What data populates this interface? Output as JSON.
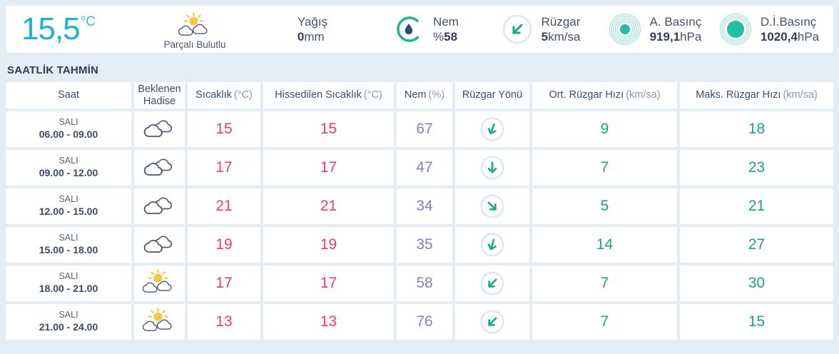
{
  "colors": {
    "background": "#e4ecf4",
    "accent_cyan": "#1ab3db",
    "temp_pink": "#f43b5f",
    "humidity_purple": "#8f7bbd",
    "wind_teal": "#15a68b",
    "icon_teal": "#1db992",
    "navy_text": "#3e4c66"
  },
  "topbar": {
    "temperature": {
      "value": "15,5",
      "unit": "°C"
    },
    "condition": {
      "label": "Parçalı Bulutlu",
      "icon": "sun-clouds"
    },
    "metrics": [
      {
        "id": "precipitation",
        "label": "Yağış",
        "value": "0",
        "unit": "mm"
      },
      {
        "id": "humidity",
        "label": "Nem",
        "prefix": "%",
        "value": "58",
        "icon": "humidity-gauge"
      },
      {
        "id": "wind",
        "label": "Rüzgar",
        "value": "5",
        "unit": "km/sa",
        "icon": "wind-arrow-lg",
        "arrow_rotation_deg": 45
      },
      {
        "id": "pressure",
        "label": "A. Basınç",
        "value": "919,1",
        "unit": "hPa",
        "icon": "pressure-small"
      },
      {
        "id": "sea-pressure",
        "label": "D.İ.Basınç",
        "value": "1020,4",
        "unit": "hPa",
        "icon": "pressure-large"
      }
    ]
  },
  "section_title": "SAATLİK TAHMİN",
  "table": {
    "headers": [
      {
        "text": "Saat"
      },
      {
        "text": "Beklenen Hadise"
      },
      {
        "text": "Sıcaklık",
        "unit": "(°C)"
      },
      {
        "text": "Hissedilen Sıcaklık",
        "unit": "(°C)"
      },
      {
        "text": "Nem",
        "unit": "(%)"
      },
      {
        "text": "Rüzgar Yönü"
      },
      {
        "text": "Ort. Rüzgar Hızı",
        "unit": "(km/sa)"
      },
      {
        "text": "Maks. Rüzgar Hızı",
        "unit": "(km/sa)"
      }
    ],
    "rows": [
      {
        "day": "SALI",
        "time": "06.00 - 09.00",
        "icon": "clouds",
        "temp": "15",
        "feels": "15",
        "humidity": "67",
        "arrow_rotation_deg": 20,
        "avg_wind": "9",
        "max_wind": "18"
      },
      {
        "day": "SALI",
        "time": "09.00 - 12.00",
        "icon": "clouds",
        "temp": "17",
        "feels": "17",
        "humidity": "47",
        "arrow_rotation_deg": 0,
        "avg_wind": "7",
        "max_wind": "23"
      },
      {
        "day": "SALI",
        "time": "12.00 - 15.00",
        "icon": "clouds",
        "temp": "21",
        "feels": "21",
        "humidity": "34",
        "arrow_rotation_deg": -45,
        "avg_wind": "5",
        "max_wind": "21"
      },
      {
        "day": "SALI",
        "time": "15.00 - 18.00",
        "icon": "clouds",
        "temp": "19",
        "feels": "19",
        "humidity": "35",
        "arrow_rotation_deg": 15,
        "avg_wind": "14",
        "max_wind": "27"
      },
      {
        "day": "SALI",
        "time": "18.00 - 21.00",
        "icon": "sun-clouds",
        "temp": "17",
        "feels": "17",
        "humidity": "58",
        "arrow_rotation_deg": 45,
        "avg_wind": "7",
        "max_wind": "30"
      },
      {
        "day": "SALI",
        "time": "21.00 - 24.00",
        "icon": "sun-clouds",
        "temp": "13",
        "feels": "13",
        "humidity": "76",
        "arrow_rotation_deg": 45,
        "avg_wind": "7",
        "max_wind": "15"
      }
    ]
  }
}
